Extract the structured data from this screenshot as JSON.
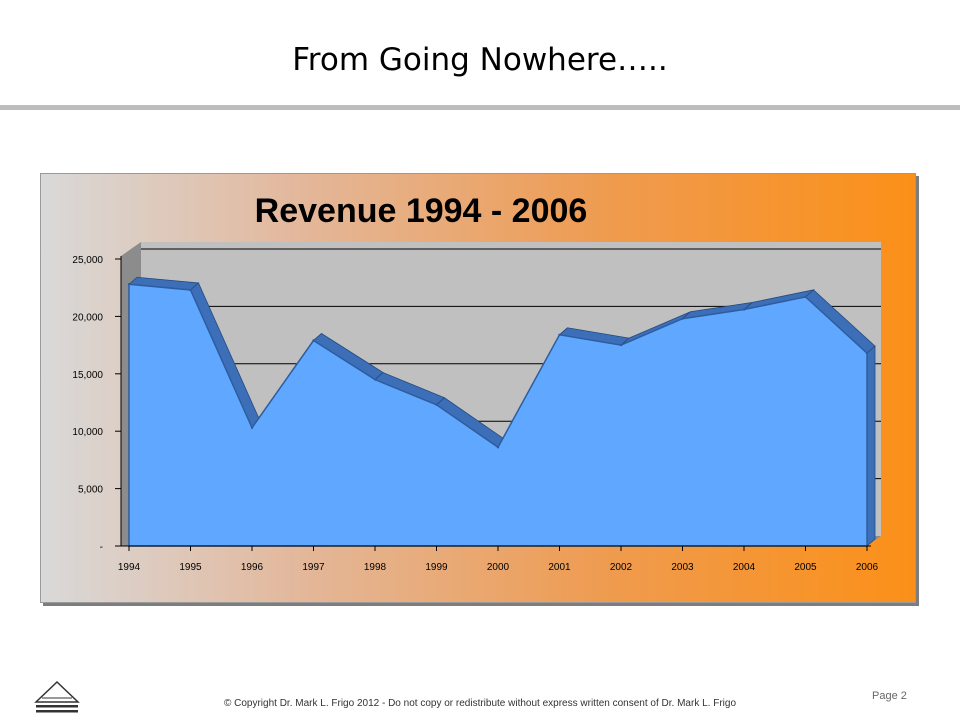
{
  "slide": {
    "title": "From Going Nowhere…..",
    "page_label": "Page",
    "page_number": "2",
    "copyright": "© Copyright Dr. Mark L. Frigo 2012 - Do not copy or redistribute without express written consent of Dr. Mark L. Frigo"
  },
  "colors": {
    "area_fill": "#60a8ff",
    "area_edge": "#3d6fb8",
    "plot_back": "#c0c0c0",
    "frame_orange": "#fb9018"
  },
  "chart_data": {
    "type": "area",
    "title": "Revenue 1994 - 2006",
    "x": [
      "1994",
      "1995",
      "1996",
      "1997",
      "1998",
      "1999",
      "2000",
      "2001",
      "2002",
      "2003",
      "2004",
      "2005",
      "2006"
    ],
    "series": [
      {
        "values": [
          22800,
          22300,
          10300,
          17900,
          14500,
          12300,
          8600,
          18400,
          17500,
          19800,
          20600,
          21700,
          16800
        ]
      }
    ],
    "ylim": [
      0,
      25000
    ],
    "yticks": [
      0,
      5000,
      10000,
      15000,
      20000,
      25000
    ],
    "ytick_labels": [
      "-",
      "5,000",
      "10,000",
      "15,000",
      "20,000",
      "25,000"
    ],
    "grid": true,
    "legend": "none",
    "style": "3d"
  }
}
